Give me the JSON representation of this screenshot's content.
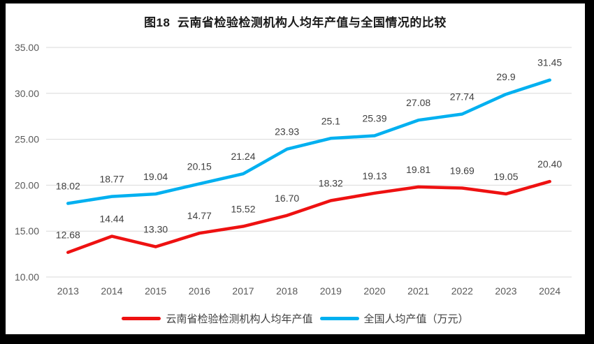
{
  "window": {
    "frame_background": "#000000",
    "panel_background": "#ffffff"
  },
  "chart_data": {
    "type": "line",
    "title": "图18  云南省检验检测机构人均年产值与全国情况的比较",
    "categories": [
      "2013",
      "2014",
      "2015",
      "2016",
      "2017",
      "2018",
      "2019",
      "2020",
      "2021",
      "2022",
      "2023",
      "2024"
    ],
    "series": [
      {
        "name": "云南省检验检测机构人均年产值",
        "color": "#ee1111",
        "values": [
          12.68,
          14.44,
          13.3,
          14.77,
          15.52,
          16.7,
          18.32,
          19.13,
          19.81,
          19.69,
          19.05,
          20.4
        ],
        "labels": [
          "12.68",
          "14.44",
          "13.30",
          "14.77",
          "15.52",
          "16.70",
          "18.32",
          "19.13",
          "19.81",
          "19.69",
          "19.05",
          "20.40"
        ]
      },
      {
        "name": "全国人均产值（万元）",
        "color": "#00b0f0",
        "values": [
          18.02,
          18.77,
          19.04,
          20.15,
          21.24,
          23.93,
          25.1,
          25.39,
          27.08,
          27.74,
          29.9,
          31.45
        ],
        "labels": [
          "18.02",
          "18.77",
          "19.04",
          "20.15",
          "21.24",
          "23.93",
          "25.1",
          "25.39",
          "27.08",
          "27.74",
          "29.9",
          "31.45"
        ]
      }
    ],
    "ylim": [
      10,
      35
    ],
    "ytick_labels": [
      "10.00",
      "15.00",
      "20.00",
      "25.00",
      "30.00",
      "35.00"
    ],
    "grid": true,
    "legend_position": "bottom",
    "gridline_color": "#d9d9d9",
    "axis_label_color": "#595959",
    "data_label_color": "#404040"
  }
}
